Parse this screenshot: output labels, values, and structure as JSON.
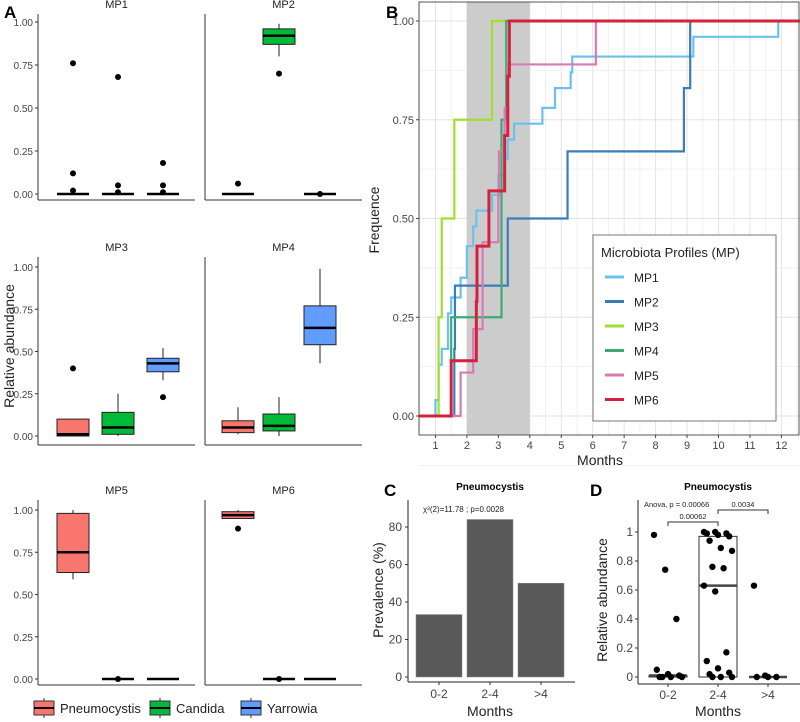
{
  "panel_labels": [
    "A",
    "B",
    "C",
    "D"
  ],
  "chart_data": [
    {
      "type": "box",
      "panel": "A",
      "ylabel": "Relative abundance",
      "yticks": [
        "0.00",
        "0.25",
        "0.50",
        "0.75",
        "1.00"
      ],
      "ylim": [
        0,
        1
      ],
      "groups": [
        "Pneumocystis",
        "Candida",
        "Yarrowia"
      ],
      "colors": [
        "#F8766D",
        "#00BA38",
        "#619CFF"
      ],
      "facets": [
        {
          "title": "MP1",
          "boxes": [
            {
              "q1": 0,
              "med": 0,
              "q3": 0,
              "lo": 0,
              "hi": 0,
              "out": [
                0.76,
                0.12,
                0.02
              ]
            },
            {
              "q1": 0,
              "med": 0,
              "q3": 0,
              "lo": 0,
              "hi": 0,
              "out": [
                0.68,
                0.05,
                0.01
              ]
            },
            {
              "q1": 0,
              "med": 0,
              "q3": 0,
              "lo": 0,
              "hi": 0,
              "out": [
                0.18,
                0.05,
                0.01
              ]
            }
          ]
        },
        {
          "title": "MP2",
          "boxes": [
            {
              "q1": 0,
              "med": 0,
              "q3": 0,
              "lo": 0,
              "hi": 0,
              "out": [
                0.06
              ]
            },
            {
              "q1": 0.87,
              "med": 0.92,
              "q3": 0.96,
              "lo": 0.8,
              "hi": 0.99,
              "out": [
                0.7
              ]
            },
            {
              "q1": 0,
              "med": 0,
              "q3": 0,
              "lo": 0,
              "hi": 0,
              "out": [
                0
              ]
            }
          ]
        },
        {
          "title": "MP3",
          "boxes": [
            {
              "q1": 0,
              "med": 0.01,
              "q3": 0.1,
              "lo": 0,
              "hi": 0.1,
              "out": [
                0.4
              ]
            },
            {
              "q1": 0.01,
              "med": 0.05,
              "q3": 0.14,
              "lo": 0,
              "hi": 0.25,
              "out": []
            },
            {
              "q1": 0.38,
              "med": 0.43,
              "q3": 0.46,
              "lo": 0.33,
              "hi": 0.52,
              "out": [
                0.23
              ]
            }
          ]
        },
        {
          "title": "MP4",
          "boxes": [
            {
              "q1": 0.02,
              "med": 0.05,
              "q3": 0.09,
              "lo": 0.01,
              "hi": 0.17,
              "out": []
            },
            {
              "q1": 0.03,
              "med": 0.06,
              "q3": 0.13,
              "lo": 0,
              "hi": 0.23,
              "out": []
            },
            {
              "q1": 0.54,
              "med": 0.64,
              "q3": 0.77,
              "lo": 0.43,
              "hi": 0.99,
              "out": []
            }
          ]
        },
        {
          "title": "MP5",
          "boxes": [
            {
              "q1": 0.63,
              "med": 0.75,
              "q3": 0.98,
              "lo": 0.59,
              "hi": 1.0,
              "out": []
            },
            {
              "q1": 0,
              "med": 0,
              "q3": 0,
              "lo": 0,
              "hi": 0,
              "out": [
                0
              ]
            },
            {
              "q1": 0,
              "med": 0,
              "q3": 0,
              "lo": 0,
              "hi": 0,
              "out": []
            }
          ]
        },
        {
          "title": "MP6",
          "boxes": [
            {
              "q1": 0.95,
              "med": 0.97,
              "q3": 0.99,
              "lo": 0.95,
              "hi": 1.0,
              "out": [
                0.89
              ]
            },
            {
              "q1": 0,
              "med": 0,
              "q3": 0,
              "lo": 0,
              "hi": 0,
              "out": [
                0
              ]
            },
            {
              "q1": 0,
              "med": 0,
              "q3": 0,
              "lo": 0,
              "hi": 0,
              "out": []
            }
          ]
        }
      ]
    },
    {
      "type": "line",
      "panel": "B",
      "xlabel": "Months",
      "ylabel": "Frequence",
      "xlim": [
        0.5,
        12.5
      ],
      "ylim": [
        0,
        1
      ],
      "xticks": [
        1,
        2,
        3,
        4,
        5,
        6,
        7,
        8,
        9,
        10,
        11,
        12
      ],
      "yticks": [
        "0.00",
        "0.25",
        "0.50",
        "0.75",
        "1.00"
      ],
      "shaded_interval": [
        2,
        4
      ],
      "legend_title": "Microbiota Profiles (MP)",
      "legend_position": "bottom-right",
      "series": [
        {
          "name": "MP1",
          "color": "#6BC1EE",
          "steps": [
            [
              1.0,
              0.04
            ],
            [
              1.1,
              0.13
            ],
            [
              1.2,
              0.17
            ],
            [
              1.4,
              0.26
            ],
            [
              1.5,
              0.3
            ],
            [
              1.8,
              0.35
            ],
            [
              2.0,
              0.43
            ],
            [
              2.2,
              0.48
            ],
            [
              2.3,
              0.52
            ],
            [
              2.8,
              0.56
            ],
            [
              3.0,
              0.61
            ],
            [
              3.2,
              0.65
            ],
            [
              3.3,
              0.7
            ],
            [
              3.5,
              0.74
            ],
            [
              4.4,
              0.78
            ],
            [
              4.8,
              0.83
            ],
            [
              5.3,
              0.87
            ],
            [
              5.35,
              0.91
            ],
            [
              9.2,
              0.96
            ],
            [
              11.9,
              1.0
            ]
          ]
        },
        {
          "name": "MP2",
          "color": "#3A7DB8",
          "steps": [
            [
              1.6,
              0.17
            ],
            [
              1.62,
              0.33
            ],
            [
              3.3,
              0.5
            ],
            [
              5.2,
              0.67
            ],
            [
              8.9,
              0.83
            ],
            [
              9.1,
              1.0
            ]
          ]
        },
        {
          "name": "MP3",
          "color": "#9FE02C",
          "steps": [
            [
              1.1,
              0.25
            ],
            [
              1.2,
              0.5
            ],
            [
              1.6,
              0.75
            ],
            [
              2.8,
              1.0
            ]
          ]
        },
        {
          "name": "MP4",
          "color": "#3DAA74",
          "steps": [
            [
              1.5,
              0.25
            ],
            [
              3.1,
              0.75
            ],
            [
              3.25,
              1.0
            ]
          ]
        },
        {
          "name": "MP5",
          "color": "#D67BB5",
          "steps": [
            [
              1.8,
              0.11
            ],
            [
              2.2,
              0.22
            ],
            [
              2.5,
              0.44
            ],
            [
              3.0,
              0.56
            ],
            [
              3.02,
              0.67
            ],
            [
              3.2,
              0.78
            ],
            [
              3.3,
              0.89
            ],
            [
              6.1,
              1.0
            ]
          ]
        },
        {
          "name": "MP6",
          "color": "#D6213D",
          "steps": [
            [
              1.5,
              0.14
            ],
            [
              2.3,
              0.29
            ],
            [
              2.32,
              0.43
            ],
            [
              2.7,
              0.57
            ],
            [
              3.2,
              0.71
            ],
            [
              3.3,
              0.86
            ],
            [
              3.35,
              1.0
            ]
          ]
        }
      ]
    },
    {
      "type": "bar",
      "panel": "C",
      "title": "Pneumocystis",
      "annotation": "χ²(2)=11.78 ; p=0.0028",
      "xlabel": "Months",
      "ylabel": "Prevalence (%)",
      "categories": [
        "0-2",
        "2-4",
        ">4"
      ],
      "values": [
        33.3,
        84,
        50
      ],
      "yticks": [
        0,
        20,
        40,
        60,
        80
      ],
      "ylim": [
        0,
        92
      ]
    },
    {
      "type": "box",
      "panel": "D",
      "title": "Pneumocystis",
      "annotation": "Anova, p = 0.00066",
      "comparisons": [
        {
          "from": "0-2",
          "to": "2-4",
          "p": "0.00062"
        },
        {
          "from": "2-4",
          "to": ">4",
          "p": "0.0034"
        }
      ],
      "xlabel": "Months",
      "ylabel": "Relative abundance",
      "categories": [
        "0-2",
        "2-4",
        ">4"
      ],
      "yticks": [
        "0",
        "0.2",
        "0.4",
        "0.6",
        "0.8",
        "1"
      ],
      "ylim": [
        0,
        1
      ],
      "boxes": [
        {
          "q1": 0,
          "med": 0.01,
          "q3": 0.01,
          "points": [
            0.98,
            0.74,
            0.4,
            0.05,
            0.02,
            0.01,
            0,
            0,
            0,
            0
          ]
        },
        {
          "q1": 0,
          "med": 0.63,
          "q3": 0.97,
          "points": [
            1,
            1,
            0.99,
            0.99,
            0.98,
            0.97,
            0.94,
            0.89,
            0.87,
            0.76,
            0.75,
            0.63,
            0.59,
            0.17,
            0.11,
            0.06,
            0.03,
            0.02,
            0,
            0,
            0
          ]
        },
        {
          "q1": 0,
          "med": 0,
          "q3": 0,
          "points": [
            0.63,
            0.01,
            0,
            0,
            0
          ]
        }
      ]
    }
  ],
  "legend": {
    "items": [
      "Pneumocystis",
      "Candida",
      "Yarrowia"
    ]
  }
}
